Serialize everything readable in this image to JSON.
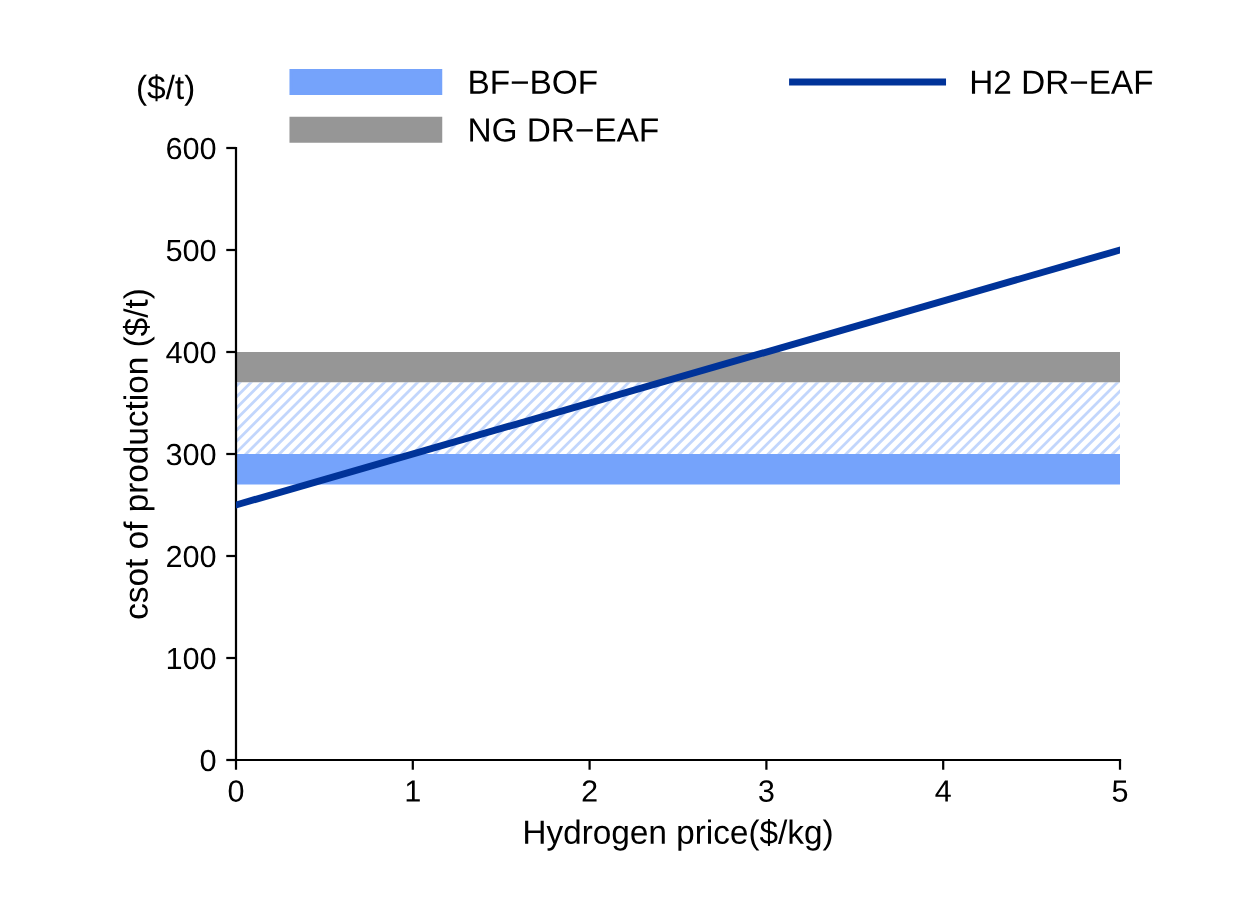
{
  "chart_data": {
    "type": "line",
    "xlabel": "Hydrogen price($/kg)",
    "ylabel": "csot of production ($/t)",
    "annotations": [
      "($/t)"
    ],
    "x": [
      0,
      5
    ],
    "series": [
      {
        "name": "H2 DR−EAF",
        "color": "#003399",
        "values": [
          250,
          500
        ]
      }
    ],
    "xlim": [
      0,
      5
    ],
    "ylim": [
      0,
      600
    ],
    "xticks": [
      0,
      1,
      2,
      3,
      4,
      5
    ],
    "yticks": [
      0,
      100,
      200,
      300,
      400,
      500,
      600
    ],
    "bands": [
      {
        "axis": "y",
        "from": 270,
        "to": 300,
        "label": "BF−BOF",
        "color": "#75a3fb"
      },
      {
        "axis": "y",
        "from": 370,
        "to": 400,
        "label": "NG DR−EAF",
        "color": "#969696"
      },
      {
        "axis": "y",
        "from": 300,
        "to": 370,
        "color": "#c2d6fc"
      }
    ],
    "grid": false,
    "legend": "top",
    "marker": "none",
    "line_style": "solid"
  }
}
